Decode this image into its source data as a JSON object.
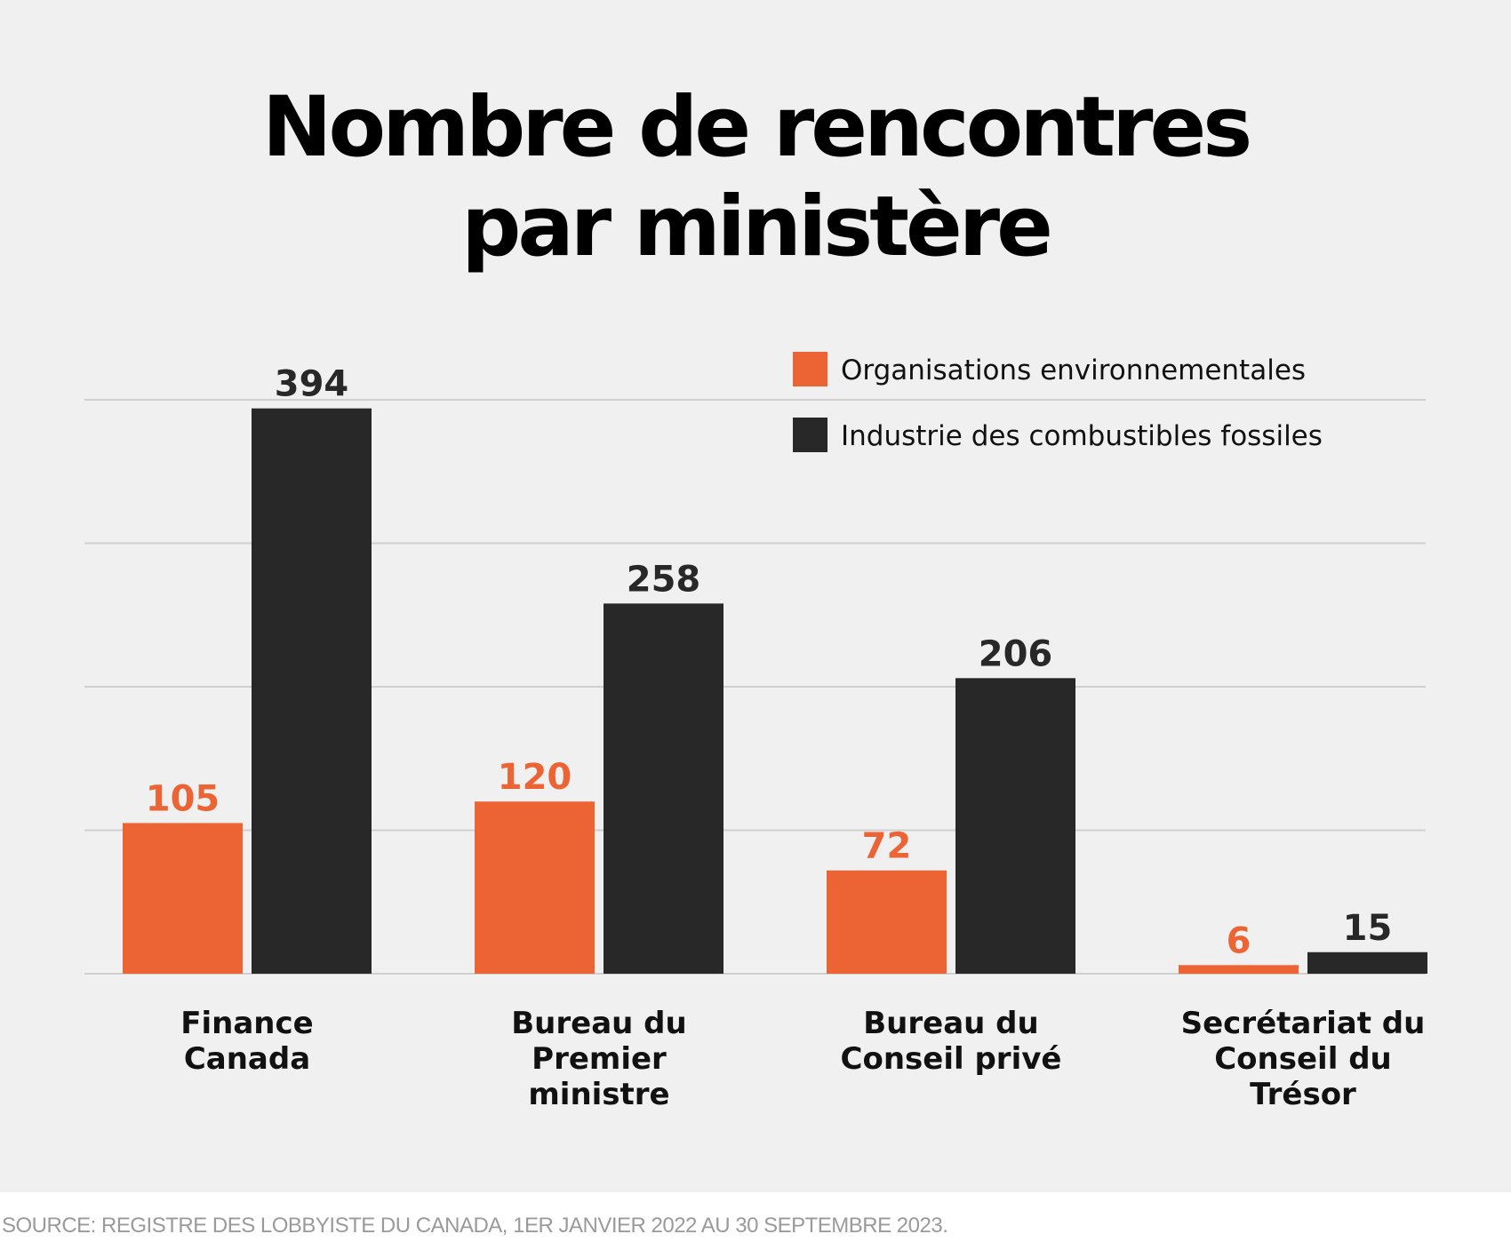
{
  "chart_data": {
    "type": "bar",
    "title_lines": [
      "Nombre de rencontres",
      "par ministère"
    ],
    "categories": [
      [
        "Finance",
        "Canada"
      ],
      [
        "Bureau du",
        "Premier",
        "ministre"
      ],
      [
        "Bureau du",
        "Conseil privé"
      ],
      [
        "Secrétariat du",
        "Conseil du",
        "Trésor"
      ]
    ],
    "series": [
      {
        "name": "Organisations environnementales",
        "color": "#ec6433",
        "values": [
          105,
          120,
          72,
          6
        ]
      },
      {
        "name": "Industrie des combustibles fossiles",
        "color": "#282828",
        "values": [
          394,
          258,
          206,
          15
        ]
      }
    ],
    "ylim": [
      0,
      400
    ],
    "gridlines": [
      0,
      100,
      200,
      300,
      400
    ],
    "grid": true,
    "y_tick_labels_shown": false,
    "legend_position": "top-right",
    "data_labels": true
  },
  "source": "SOURCE: REGISTRE DES LOBBYISTE DU CANADA, 1ER JANVIER 2022 AU 30 SEPTEMBRE 2023."
}
